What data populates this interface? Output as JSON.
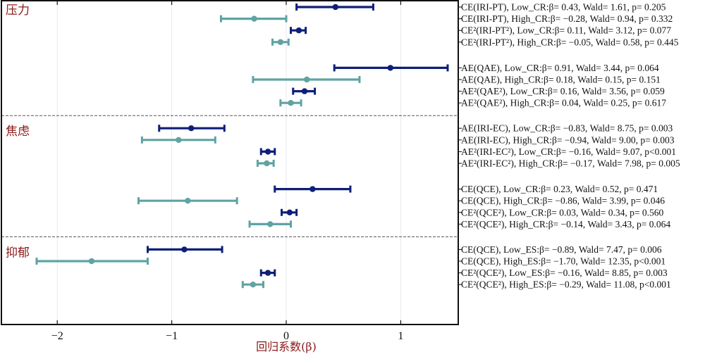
{
  "chart_data": {
    "type": "forest",
    "title": "",
    "xlabel": "回归系数(β)",
    "ylabel": "",
    "xlim": [
      -2.5,
      1.5
    ],
    "xticks": [
      -2,
      -1,
      0,
      1
    ],
    "xtick_labels": [
      "−2",
      "−1",
      "0",
      "1"
    ],
    "grid": "vertical",
    "colors": {
      "Low": "#0d1f78",
      "High": "#5fa3a3",
      "group_label": "#8b1a1a",
      "frame": "#111111"
    },
    "groups": [
      {
        "label": "压力",
        "blocks": [
          [
            {
              "label": "CE(IRI-PT), Low_CR:",
              "beta_text": "β= 0.43, Wald= 1.61, ",
              "p_text": "p= 0.205",
              "series": "Low",
              "beta": 0.43,
              "ci": [
                0.09,
                0.76
              ]
            },
            {
              "label": "CE(IRI-PT), High_CR:",
              "beta_text": "β= −0.28, Wald= 0.94, ",
              "p_text": "p= 0.332",
              "series": "High",
              "beta": -0.28,
              "ci": [
                -0.57,
                0.0
              ]
            },
            {
              "label": "CE²(IRI-PT²), Low_CR:",
              "beta_text": "β= 0.11, Wald= 3.12, ",
              "p_text": "p= 0.077",
              "series": "Low",
              "beta": 0.11,
              "ci": [
                0.04,
                0.17
              ]
            },
            {
              "label": "CE²(IRI-PT²), High_CR:",
              "beta_text": "β= −0.05, Wald= 0.58, ",
              "p_text": "p= 0.445",
              "series": "High",
              "beta": -0.05,
              "ci": [
                -0.12,
                0.02
              ]
            }
          ],
          [
            {
              "label": "AE(QAE), Low_CR:",
              "beta_text": "β= 0.91, Wald= 3.44, ",
              "p_text": "p= 0.064",
              "series": "Low",
              "beta": 0.91,
              "ci": [
                0.42,
                1.41
              ]
            },
            {
              "label": "AE(QAE), High_CR:",
              "beta_text": "β= 0.18, Wald= 0.15, ",
              "p_text": "p= 0.151",
              "series": "High",
              "beta": 0.18,
              "ci": [
                -0.29,
                0.64
              ]
            },
            {
              "label": "AE²(QAE²), Low_CR:",
              "beta_text": "β= 0.16, Wald= 3.56, ",
              "p_text": "p= 0.059",
              "series": "Low",
              "beta": 0.16,
              "ci": [
                0.06,
                0.25
              ]
            },
            {
              "label": "AE²(QAE²), High_CR:",
              "beta_text": "β= 0.04, Wald= 0.25, ",
              "p_text": "p= 0.617",
              "series": "High",
              "beta": 0.04,
              "ci": [
                -0.05,
                0.13
              ]
            }
          ]
        ]
      },
      {
        "label": "焦虑",
        "blocks": [
          [
            {
              "label": "AE(IRI-EC), Low_CR:",
              "beta_text": "β= −0.83, Wald= 8.75, ",
              "p_text": "p= 0.003",
              "series": "Low",
              "beta": -0.83,
              "ci": [
                -1.11,
                -0.54
              ]
            },
            {
              "label": "AE(IRI-EC), High_CR:",
              "beta_text": "β= −0.94, Wald= 9.00, ",
              "p_text": "p= 0.003",
              "series": "High",
              "beta": -0.94,
              "ci": [
                -1.26,
                -0.62
              ]
            },
            {
              "label": "AE²(IRI-EC²), Low_CR:",
              "beta_text": "β= −0.16, Wald= 9.07, ",
              "p_text": "p<0.001",
              "series": "Low",
              "beta": -0.16,
              "ci": [
                -0.22,
                -0.1
              ]
            },
            {
              "label": "AE²(IRI-EC²), High_CR:",
              "beta_text": "β= −0.17, Wald= 7.98, ",
              "p_text": "p= 0.005",
              "series": "High",
              "beta": -0.17,
              "ci": [
                -0.25,
                -0.11
              ]
            }
          ],
          [
            {
              "label": "CE(QCE), Low_CR:",
              "beta_text": "β= 0.23, Wald= 0.52, ",
              "p_text": "p= 0.471",
              "series": "Low",
              "beta": 0.23,
              "ci": [
                -0.1,
                0.56
              ]
            },
            {
              "label": "CE(QCE), High_CR:",
              "beta_text": "β= −0.86, Wald= 3.99, ",
              "p_text": "p= 0.046",
              "series": "High",
              "beta": -0.86,
              "ci": [
                -1.29,
                -0.43
              ]
            },
            {
              "label": "CE²(QCE²), Low_CR:",
              "beta_text": "β= 0.03, Wald= 0.34, ",
              "p_text": "p= 0.560",
              "series": "Low",
              "beta": 0.03,
              "ci": [
                -0.04,
                0.09
              ]
            },
            {
              "label": "CE²(QCE²), High_CR:",
              "beta_text": "β= −0.14, Wald= 3.43, ",
              "p_text": "p= 0.064",
              "series": "High",
              "beta": -0.14,
              "ci": [
                -0.32,
                0.04
              ]
            }
          ]
        ]
      },
      {
        "label": "抑郁",
        "blocks": [
          [
            {
              "label": "CE(QCE), Low_ES:",
              "beta_text": "β= −0.89, Wald= 7.47, ",
              "p_text": "p= 0.006",
              "series": "Low",
              "beta": -0.89,
              "ci": [
                -1.21,
                -0.56
              ]
            },
            {
              "label": "CE(QCE), High_ES:",
              "beta_text": "β= −1.70, Wald= 12.35, ",
              "p_text": "p<0.001",
              "series": "High",
              "beta": -1.7,
              "ci": [
                -2.18,
                -1.21
              ]
            },
            {
              "label": "CE²(QCE²), Low_ES:",
              "beta_text": "β= −0.16, Wald= 8.85, ",
              "p_text": "p= 0.003",
              "series": "Low",
              "beta": -0.16,
              "ci": [
                -0.22,
                -0.1
              ]
            },
            {
              "label": "CE²(QCE²), High_ES:",
              "beta_text": "β= −0.29, Wald= 11.08, ",
              "p_text": "p<0.001",
              "series": "High",
              "beta": -0.29,
              "ci": [
                -0.38,
                -0.2
              ]
            }
          ]
        ]
      }
    ]
  }
}
